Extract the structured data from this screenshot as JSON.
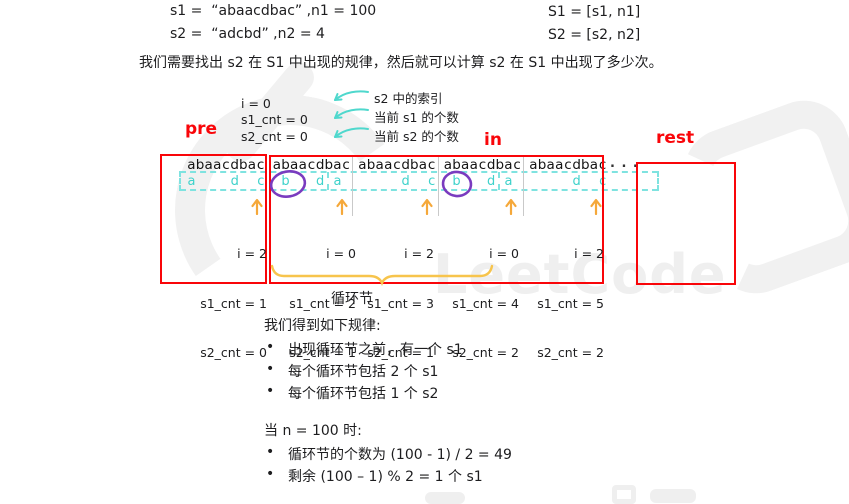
{
  "colors": {
    "red": "#f90509",
    "teal_letter": "#3fd2cb",
    "teal_dash": "#7fe3e0",
    "orange_arrow": "#f5a83a",
    "yellow_brace": "#f7c44c",
    "purple_circle": "#7a3bbf",
    "text": "#1d1d1f",
    "separator_gray": "#c9c9c9",
    "watermark_gray": "#efefef"
  },
  "top": {
    "s1_line": "s1 =  “abaacdbac” ,n1 = 100",
    "s2_line": "s2 =  “adcbd” ,n2 = 4",
    "S1_line": "S1 = [s1, n1]",
    "S2_line": "S2 = [s2, n2]",
    "intro": "我们需要找出 s2 在 S1 中出现的规律，然后就可以计算 s2 在 S1 中出现了多少次。"
  },
  "state": {
    "i": "i = 0",
    "s1_cnt": "s1_cnt = 0",
    "s2_cnt": "s2_cnt = 0",
    "i_label": "s2 中的索引",
    "s1_label": "当前 s1 的个数",
    "s2_label": "当前 s2 的个数"
  },
  "regions": {
    "pre": "pre",
    "in": "in",
    "rest": "rest"
  },
  "sequence": {
    "s1_text": "abaacdbac",
    "ellipsis": ". . .",
    "matched": [
      {
        "ch": "a"
      },
      {
        "ch": "d"
      },
      {
        "ch": "c"
      },
      {
        "ch": "b"
      },
      {
        "ch": "d"
      },
      {
        "ch": "a"
      },
      {
        "ch": "d"
      },
      {
        "ch": "c"
      },
      {
        "ch": "b"
      },
      {
        "ch": "d"
      },
      {
        "ch": "a"
      },
      {
        "ch": "d"
      },
      {
        "ch": "c"
      }
    ]
  },
  "columns": [
    {
      "i": "i = 2",
      "s1": "s1_cnt = 1",
      "s2": "s2_cnt = 0"
    },
    {
      "i": "i = 0",
      "s1": "s1_cnt = 2",
      "s2": "s2_cnt = 1"
    },
    {
      "i": "i = 2",
      "s1": "s1_cnt = 3",
      "s2": "s2_cnt = 1"
    },
    {
      "i": "i = 0",
      "s1": "s1_cnt = 4",
      "s2": "s2_cnt = 2"
    },
    {
      "i": "i = 2",
      "s1": "s1_cnt = 5",
      "s2": "s2_cnt = 2"
    }
  ],
  "cycle": {
    "label": "循环节"
  },
  "rules": {
    "bullet": "•",
    "title": "我们得到如下规律:",
    "items": [
      "出现循环节之前，有一个 s1",
      "每个循环节包括 2 个 s1",
      "每个循环节包括 1 个 s2"
    ]
  },
  "calc": {
    "title": "当 n = 100 时:",
    "items": [
      "循环节的个数为 (100 - 1) / 2 = 49",
      "剩余 (100 – 1) % 2 = 1 个 s1"
    ]
  },
  "watermark": {
    "text": "LeetCode"
  }
}
